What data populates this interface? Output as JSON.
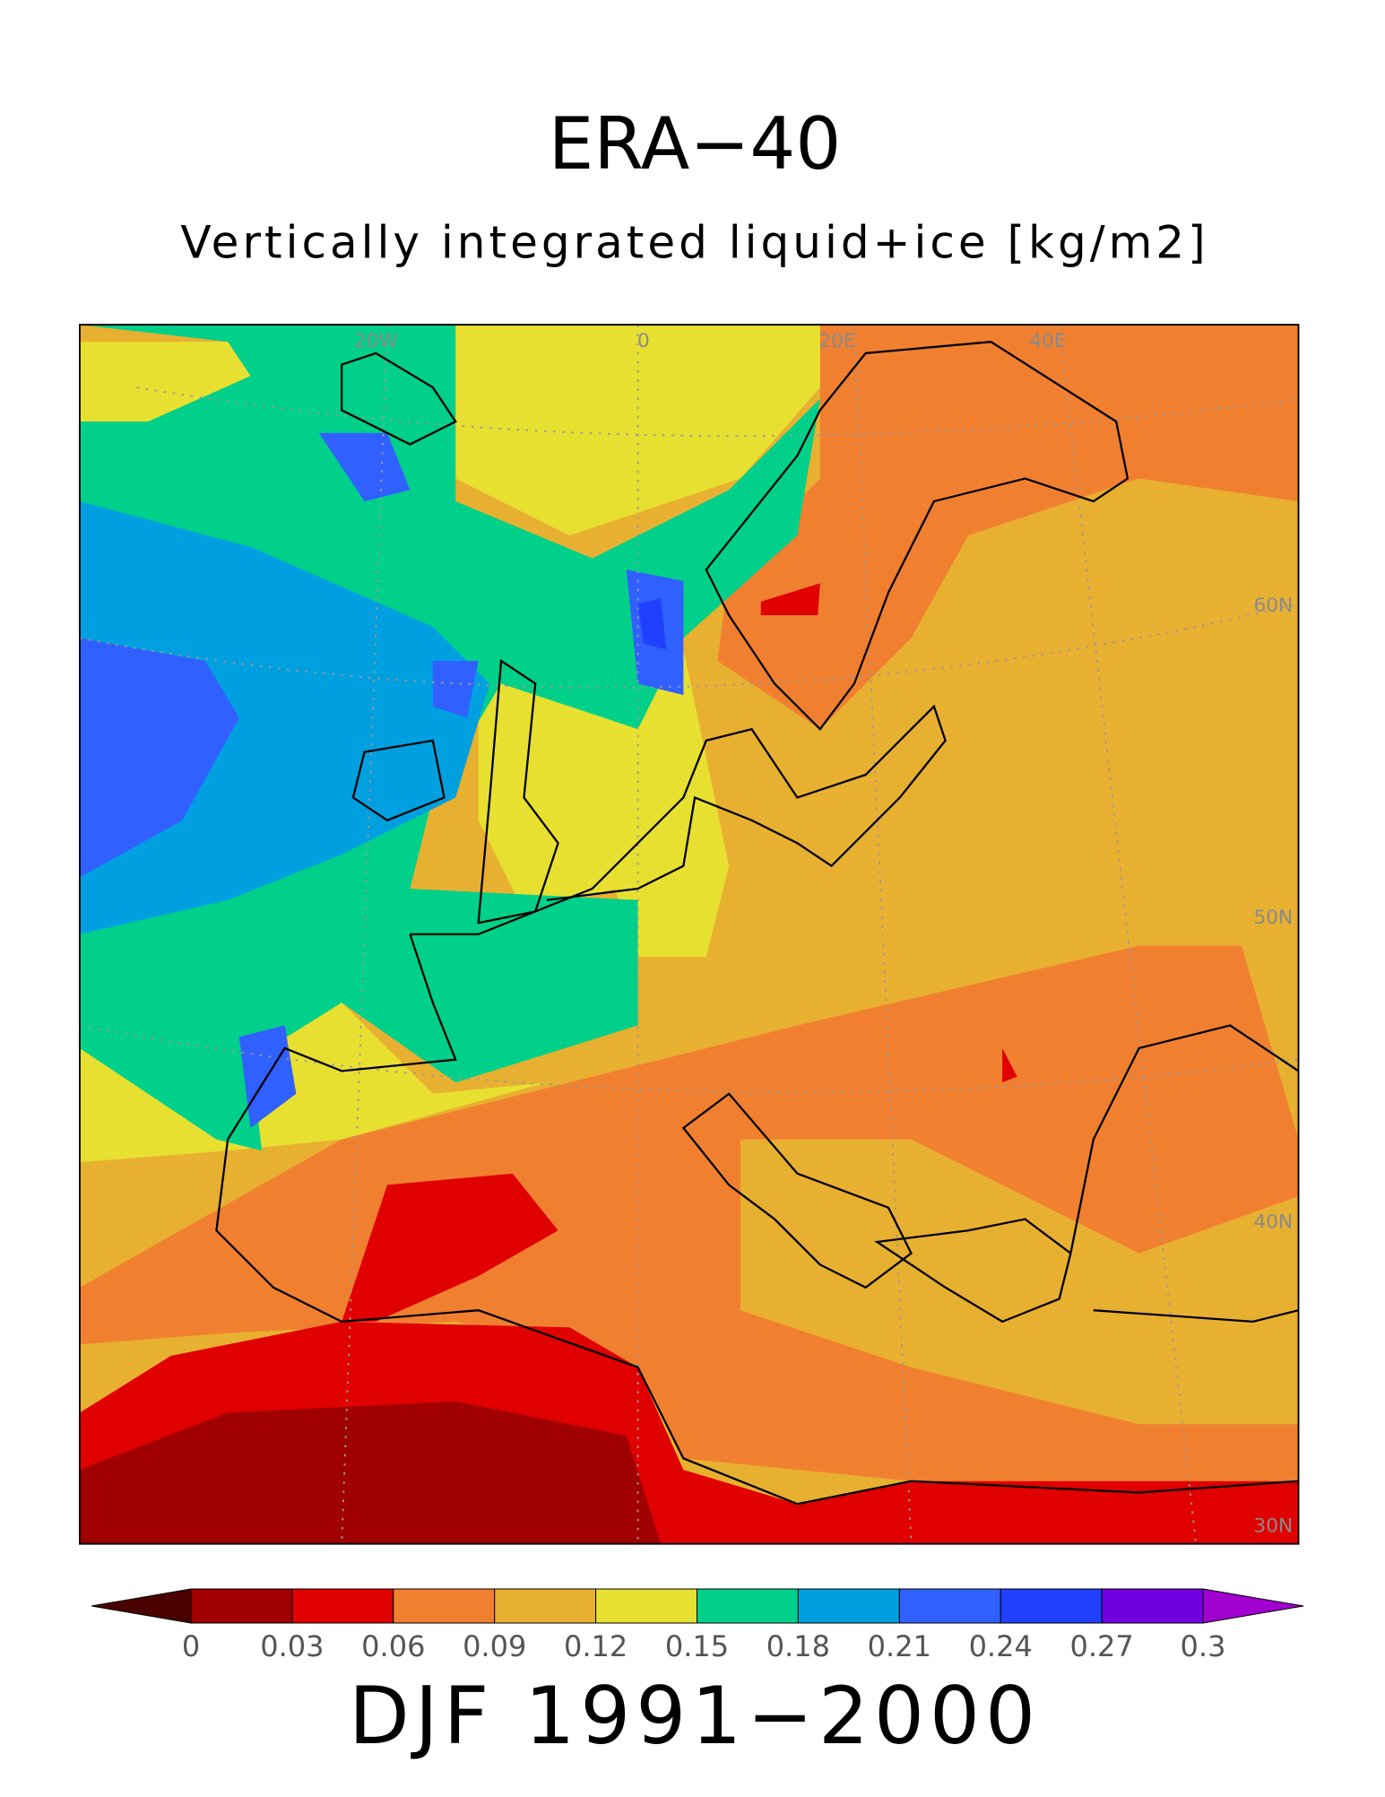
{
  "header": {
    "title": "ERA−40",
    "subtitle": "Vertically integrated liquid+ice [kg/m2]"
  },
  "map": {
    "lon_labels": [
      "20W",
      "0",
      "20E",
      "40E"
    ],
    "lat_labels": [
      "60N",
      "50N",
      "40N",
      "30N"
    ]
  },
  "colorbar": {
    "ticks": [
      0,
      0.03,
      0.06,
      0.09,
      0.12,
      0.15,
      0.18,
      0.21,
      0.24,
      0.27,
      0.3
    ],
    "colors": [
      "#a00000",
      "#e00000",
      "#f08030",
      "#e8b030",
      "#e8e030",
      "#00d08a",
      "#00a0e0",
      "#3060ff",
      "#2040ff",
      "#7000e0"
    ],
    "under_color": "#4a0000",
    "over_color": "#a000d0"
  },
  "footer": {
    "period": "DJF 1991−2000"
  }
}
